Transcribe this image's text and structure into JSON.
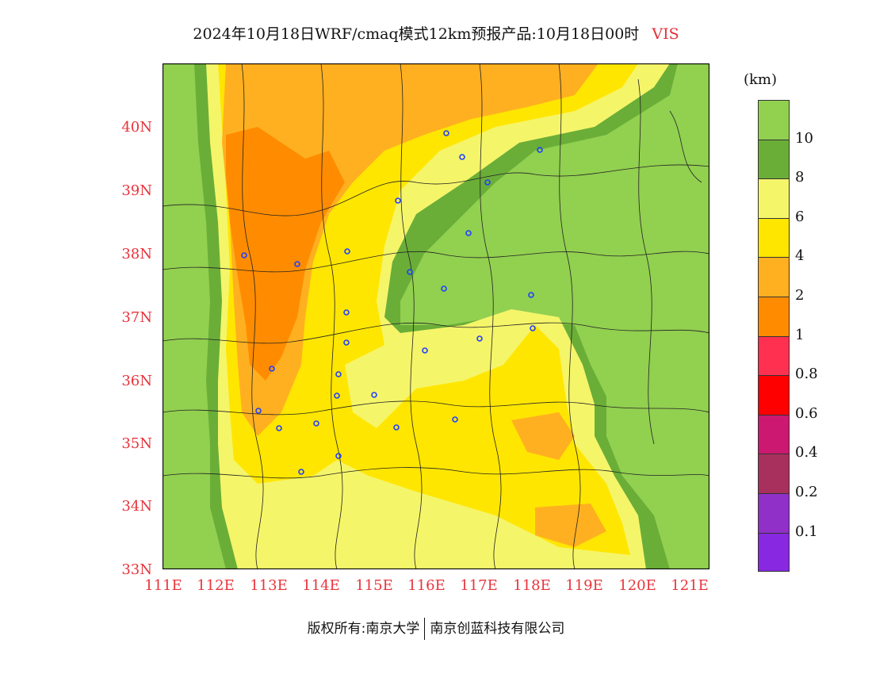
{
  "title": {
    "main": "2024年10月18日WRF/cmaq模式12km预报产品:10月18日00时",
    "variable": "VIS"
  },
  "map": {
    "lat_ticks": [
      "40N",
      "39N",
      "38N",
      "37N",
      "36N",
      "35N",
      "34N",
      "33N"
    ],
    "lon_ticks": [
      "111E",
      "112E",
      "113E",
      "114E",
      "115E",
      "116E",
      "117E",
      "118E",
      "119E",
      "120E",
      "121E"
    ],
    "lon_range": [
      111,
      121.4
    ],
    "lat_range": [
      33,
      41
    ]
  },
  "legend": {
    "unit": "(km)",
    "labels": [
      "10",
      "8",
      "6",
      "4",
      "2",
      "1",
      "0.8",
      "0.6",
      "0.4",
      "0.2",
      "0.1"
    ],
    "colors": [
      "#92d050",
      "#6aae38",
      "#f5f56a",
      "#ffe600",
      "#ffb020",
      "#ff8c00",
      "#ff3050",
      "#ff0000",
      "#cc1870",
      "#a8305c",
      "#9030c8",
      "#8828e0"
    ]
  },
  "footer": {
    "copyright": "版权所有:南京大学",
    "company": "南京创蓝科技有限公司"
  }
}
